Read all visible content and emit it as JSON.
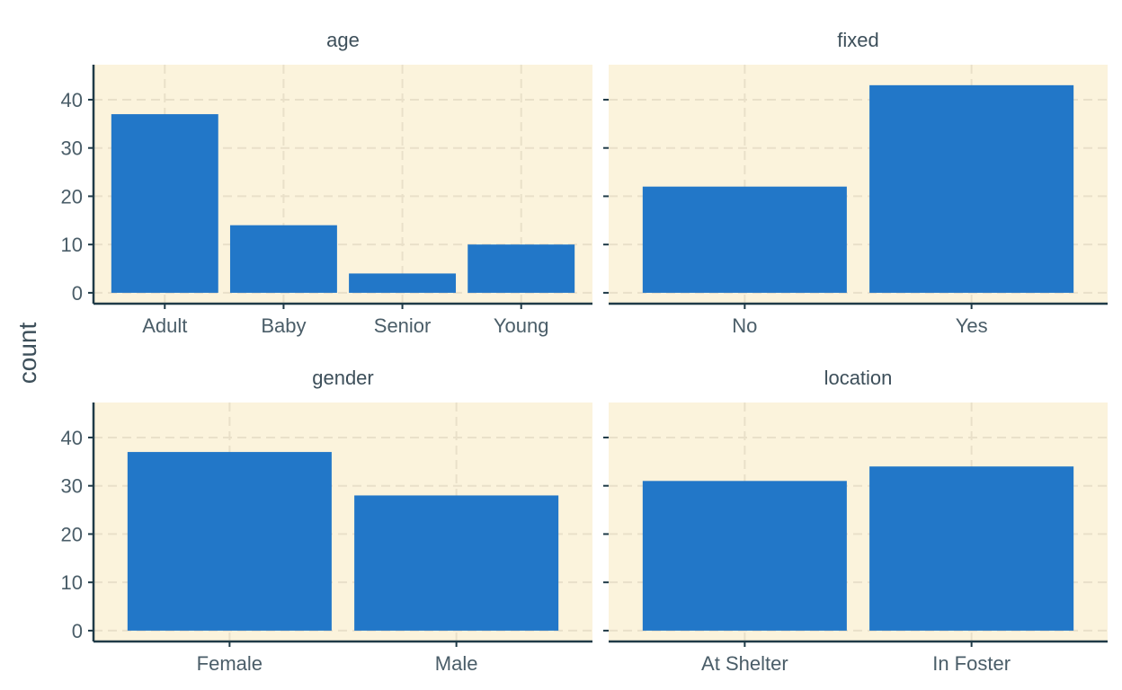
{
  "colors": {
    "panel_background": "#fbf3dc",
    "grid": "#e9e0c9",
    "bar": "#2277c8",
    "axis_line": "#1f3a47",
    "text": "#4a5d68"
  },
  "chart_data": {
    "type": "bar",
    "layout": "facet-grid-2x2",
    "ylabel": "count",
    "xlabel": "",
    "ylim": [
      0,
      45
    ],
    "yticks": [
      0,
      10,
      20,
      30,
      40
    ],
    "grid": true,
    "legend": "none",
    "facets": [
      {
        "name": "age",
        "categories": [
          "Adult",
          "Baby",
          "Senior",
          "Young"
        ],
        "values": [
          37,
          14,
          4,
          10
        ]
      },
      {
        "name": "fixed",
        "categories": [
          "No",
          "Yes"
        ],
        "values": [
          22,
          43
        ]
      },
      {
        "name": "gender",
        "categories": [
          "Female",
          "Male"
        ],
        "values": [
          37,
          28
        ]
      },
      {
        "name": "location",
        "categories": [
          "At Shelter",
          "In Foster"
        ],
        "values": [
          31,
          34
        ]
      }
    ]
  }
}
